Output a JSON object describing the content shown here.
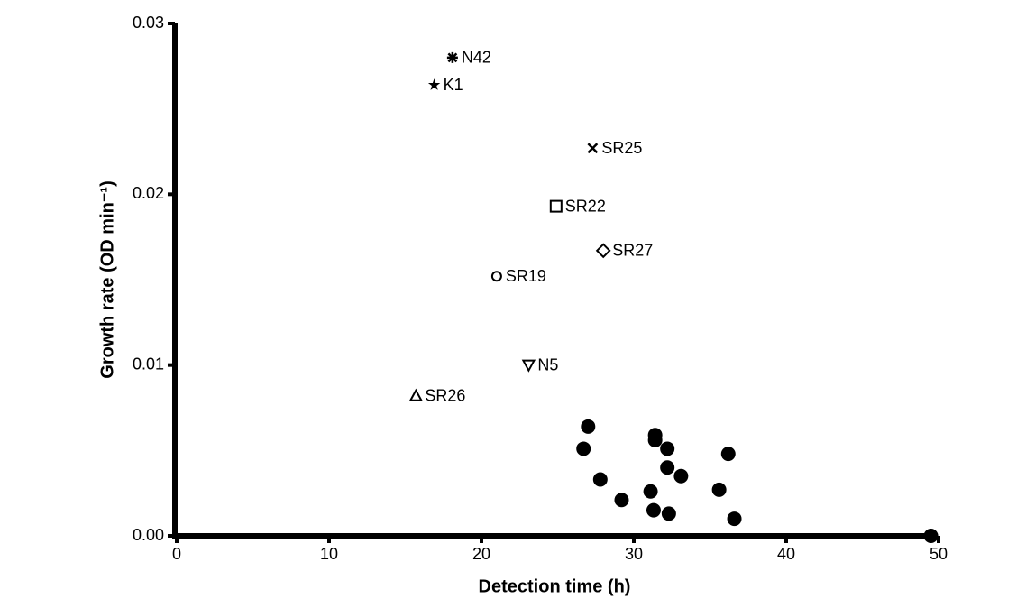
{
  "chart_data": {
    "type": "scatter",
    "x_label": "Detection time (h)",
    "y_label": "Growth rate (OD min⁻¹)",
    "xlim": [
      0,
      50
    ],
    "xticks": [
      0,
      10,
      20,
      30,
      40,
      50
    ],
    "ylim": [
      0,
      0.03
    ],
    "yticks": [
      {
        "value": 0,
        "label": "0.00"
      },
      0.01,
      0.02,
      0.03
    ],
    "grid": false,
    "series": [
      {
        "name": "N42",
        "marker": "asterisk",
        "color": "#000000",
        "x": [
          18.1
        ],
        "values": [
          0.028
        ]
      },
      {
        "name": "K1",
        "marker": "star",
        "color": "#000000",
        "x": [
          16.9
        ],
        "values": [
          0.0264
        ]
      },
      {
        "name": "SR25",
        "marker": "cross",
        "color": "#000000",
        "x": [
          27.3
        ],
        "values": [
          0.0227
        ]
      },
      {
        "name": "SR22",
        "marker": "square",
        "color": "#000000",
        "x": [
          24.9
        ],
        "values": [
          0.0193
        ]
      },
      {
        "name": "SR27",
        "marker": "diamond",
        "color": "#000000",
        "x": [
          28.0
        ],
        "values": [
          0.0167
        ]
      },
      {
        "name": "SR19",
        "marker": "circle",
        "color": "#000000",
        "x": [
          21.0
        ],
        "values": [
          0.0152
        ]
      },
      {
        "name": "N5",
        "marker": "triangle-down",
        "color": "#000000",
        "x": [
          23.1
        ],
        "values": [
          0.01
        ]
      },
      {
        "name": "SR26",
        "marker": "triangle-up",
        "color": "#000000",
        "x": [
          15.7
        ],
        "values": [
          0.0082
        ]
      },
      {
        "marker": "filled-circle",
        "color": "#000000",
        "x": [
          27.0,
          26.7,
          27.8,
          29.2,
          31.4,
          31.4,
          32.2,
          32.2,
          33.1,
          31.1,
          31.3,
          32.3,
          35.6,
          36.2,
          36.6,
          49.5
        ],
        "values": [
          0.0064,
          0.0051,
          0.0033,
          0.0021,
          0.0059,
          0.0056,
          0.0051,
          0.004,
          0.0035,
          0.0026,
          0.0015,
          0.0013,
          0.0027,
          0.0048,
          0.001,
          0.0
        ]
      }
    ]
  }
}
